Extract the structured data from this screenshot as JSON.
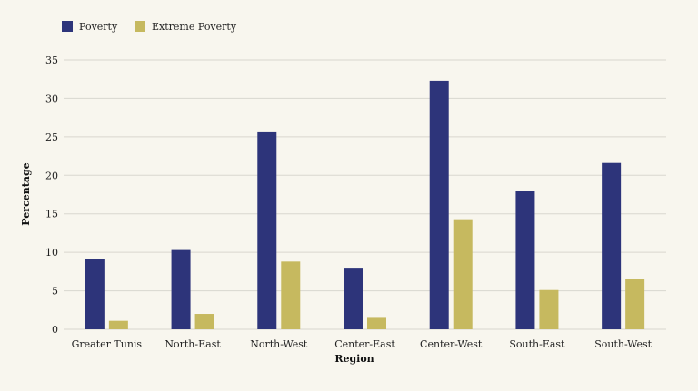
{
  "colors": {
    "poverty": "#2d347a",
    "extreme_poverty": "#c6b95f",
    "grid": "#d9d7cf",
    "background": "#f8f6ee"
  },
  "chart_data": {
    "type": "bar",
    "title": "",
    "xlabel": "Region",
    "ylabel": "Percentage",
    "ylim": [
      0,
      35
    ],
    "yticks": [
      "0",
      "5",
      "10",
      "15",
      "20",
      "25",
      "30",
      "35"
    ],
    "grid": true,
    "legend_position": "top-left",
    "categories": [
      "Greater Tunis",
      "North-East",
      "North-West",
      "Center-East",
      "Center-West",
      "South-East",
      "South-West"
    ],
    "series": [
      {
        "name": "Poverty",
        "color": "#2d347a",
        "values": [
          9.1,
          10.3,
          25.7,
          8.0,
          32.3,
          18.0,
          21.6
        ]
      },
      {
        "name": "Extreme Poverty",
        "color": "#c6b95f",
        "values": [
          1.1,
          2.0,
          8.8,
          1.6,
          14.3,
          5.1,
          6.5
        ]
      }
    ]
  }
}
